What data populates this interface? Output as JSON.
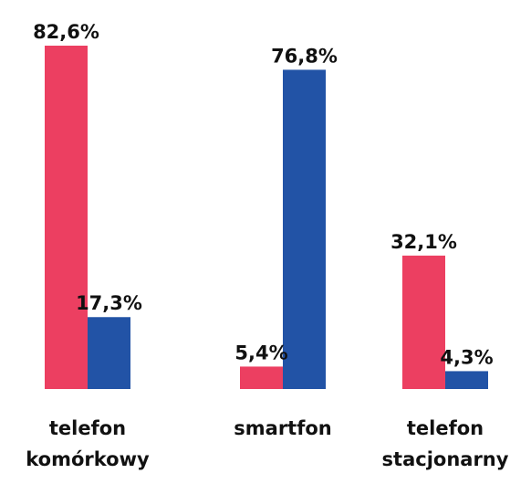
{
  "chart_data": {
    "type": "bar",
    "categories": [
      [
        "telefon",
        "komórkowy"
      ],
      [
        "smartfon"
      ],
      [
        "telefon",
        "stacjonarny"
      ]
    ],
    "series": [
      {
        "color": "#ec3f61",
        "values": [
          82.6,
          5.4,
          32.1
        ],
        "labels": [
          "82,6%",
          "5,4%",
          "32,1%"
        ]
      },
      {
        "color": "#2253a6",
        "values": [
          17.3,
          76.8,
          4.3
        ],
        "labels": [
          "17,3%",
          "76,8%",
          "4,3%"
        ]
      }
    ],
    "ylim": [
      0,
      82.6
    ],
    "grid": false,
    "legend": "none"
  }
}
